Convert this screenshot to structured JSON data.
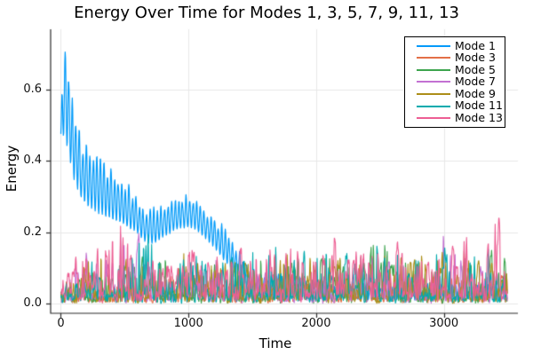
{
  "chart_data": {
    "type": "line",
    "title": "Energy Over Time for Modes 1, 3, 5, 7, 9, 11, 13",
    "xlabel": "Time",
    "ylabel": "Energy",
    "xlim": [
      -80,
      3580
    ],
    "ylim": [
      -0.027,
      0.768
    ],
    "xticks": [
      {
        "value": 0,
        "label": "0"
      },
      {
        "value": 1000,
        "label": "1000"
      },
      {
        "value": 2000,
        "label": "2000"
      },
      {
        "value": 3000,
        "label": "3000"
      }
    ],
    "yticks": [
      {
        "value": 0.0,
        "label": "0.0"
      },
      {
        "value": 0.2,
        "label": "0.2"
      },
      {
        "value": 0.4,
        "label": "0.4"
      },
      {
        "value": 0.6,
        "label": "0.6"
      }
    ],
    "grid": true,
    "grid_color": "#e8e8e8",
    "axis_color": "#2b2b2b",
    "background_color": "#ffffff",
    "legend_position": "top-right",
    "time_range": [
      0,
      3500
    ],
    "series": [
      {
        "name": "Mode 1",
        "color": "#009AFA",
        "seed": 1,
        "style": "oscillating",
        "period": 27.8,
        "upper": [
          [
            0,
            0.5
          ],
          [
            14,
            0.68
          ],
          [
            30,
            0.755
          ],
          [
            60,
            0.7
          ],
          [
            90,
            0.62
          ],
          [
            120,
            0.56
          ],
          [
            150,
            0.5
          ],
          [
            200,
            0.46
          ],
          [
            260,
            0.44
          ],
          [
            320,
            0.42
          ],
          [
            380,
            0.4
          ],
          [
            440,
            0.37
          ],
          [
            500,
            0.35
          ],
          [
            560,
            0.32
          ],
          [
            620,
            0.3
          ],
          [
            680,
            0.27
          ],
          [
            740,
            0.27
          ],
          [
            800,
            0.28
          ],
          [
            860,
            0.29
          ],
          [
            920,
            0.3
          ],
          [
            980,
            0.315
          ],
          [
            1040,
            0.31
          ],
          [
            1100,
            0.29
          ],
          [
            1160,
            0.27
          ],
          [
            1220,
            0.245
          ],
          [
            1280,
            0.215
          ],
          [
            1340,
            0.185
          ],
          [
            1400,
            0.155
          ],
          [
            1460,
            0.125
          ],
          [
            1520,
            0.1
          ],
          [
            1580,
            0.085
          ],
          [
            1650,
            0.09
          ],
          [
            1750,
            0.1
          ],
          [
            1850,
            0.08
          ],
          [
            1950,
            0.065
          ],
          [
            2100,
            0.06
          ],
          [
            2300,
            0.065
          ],
          [
            2500,
            0.055
          ],
          [
            2700,
            0.06
          ],
          [
            2900,
            0.055
          ],
          [
            3100,
            0.06
          ],
          [
            3300,
            0.055
          ],
          [
            3500,
            0.055
          ]
        ],
        "lower": [
          [
            0,
            0.46
          ],
          [
            30,
            0.47
          ],
          [
            60,
            0.42
          ],
          [
            100,
            0.35
          ],
          [
            150,
            0.3
          ],
          [
            200,
            0.275
          ],
          [
            300,
            0.25
          ],
          [
            400,
            0.235
          ],
          [
            500,
            0.22
          ],
          [
            600,
            0.195
          ],
          [
            660,
            0.17
          ],
          [
            720,
            0.165
          ],
          [
            800,
            0.185
          ],
          [
            900,
            0.205
          ],
          [
            1000,
            0.215
          ],
          [
            1060,
            0.205
          ],
          [
            1120,
            0.185
          ],
          [
            1200,
            0.155
          ],
          [
            1280,
            0.12
          ],
          [
            1360,
            0.085
          ],
          [
            1440,
            0.055
          ],
          [
            1520,
            0.035
          ],
          [
            1600,
            0.02
          ],
          [
            1750,
            0.02
          ],
          [
            1900,
            0.012
          ],
          [
            2200,
            0.01
          ],
          [
            2600,
            0.01
          ],
          [
            3000,
            0.01
          ],
          [
            3500,
            0.01
          ]
        ]
      },
      {
        "name": "Mode 3",
        "color": "#E36F47",
        "seed": 3,
        "style": "spiky",
        "base": 0.02,
        "spike_pow": 2.4,
        "envelope": [
          [
            0,
            0.03
          ],
          [
            20,
            0.09
          ],
          [
            60,
            0.06
          ],
          [
            150,
            0.07
          ],
          [
            300,
            0.08
          ],
          [
            450,
            0.07
          ],
          [
            600,
            0.08
          ],
          [
            800,
            0.07
          ],
          [
            1000,
            0.08
          ],
          [
            1200,
            0.07
          ],
          [
            1400,
            0.08
          ],
          [
            1600,
            0.07
          ],
          [
            1800,
            0.085
          ],
          [
            2000,
            0.075
          ],
          [
            2200,
            0.08
          ],
          [
            2400,
            0.07
          ],
          [
            2600,
            0.09
          ],
          [
            2800,
            0.075
          ],
          [
            3000,
            0.08
          ],
          [
            3200,
            0.07
          ],
          [
            3400,
            0.08
          ],
          [
            3500,
            0.07
          ]
        ]
      },
      {
        "name": "Mode 5",
        "color": "#3DA44E",
        "seed": 5,
        "style": "spiky",
        "base": 0.02,
        "spike_pow": 2.6,
        "envelope": [
          [
            0,
            0.02
          ],
          [
            150,
            0.07
          ],
          [
            300,
            0.09
          ],
          [
            450,
            0.1
          ],
          [
            600,
            0.13
          ],
          [
            700,
            0.19
          ],
          [
            800,
            0.13
          ],
          [
            950,
            0.1
          ],
          [
            1100,
            0.12
          ],
          [
            1250,
            0.14
          ],
          [
            1400,
            0.1
          ],
          [
            1550,
            0.12
          ],
          [
            1700,
            0.1
          ],
          [
            1850,
            0.12
          ],
          [
            2000,
            0.11
          ],
          [
            2150,
            0.15
          ],
          [
            2250,
            0.12
          ],
          [
            2400,
            0.17
          ],
          [
            2550,
            0.18
          ],
          [
            2700,
            0.13
          ],
          [
            2850,
            0.1
          ],
          [
            3000,
            0.12
          ],
          [
            3150,
            0.1
          ],
          [
            3300,
            0.12
          ],
          [
            3450,
            0.16
          ],
          [
            3500,
            0.12
          ]
        ]
      },
      {
        "name": "Mode 7",
        "color": "#C371D2",
        "seed": 7,
        "style": "spiky",
        "base": 0.02,
        "spike_pow": 2.4,
        "envelope": [
          [
            0,
            0.02
          ],
          [
            100,
            0.11
          ],
          [
            160,
            0.17
          ],
          [
            230,
            0.12
          ],
          [
            320,
            0.1
          ],
          [
            420,
            0.2
          ],
          [
            470,
            0.22
          ],
          [
            530,
            0.14
          ],
          [
            580,
            0.19
          ],
          [
            640,
            0.2
          ],
          [
            700,
            0.12
          ],
          [
            820,
            0.09
          ],
          [
            950,
            0.1
          ],
          [
            1050,
            0.15
          ],
          [
            1150,
            0.12
          ],
          [
            1300,
            0.09
          ],
          [
            1450,
            0.08
          ],
          [
            1600,
            0.1
          ],
          [
            1750,
            0.09
          ],
          [
            1900,
            0.1
          ],
          [
            2050,
            0.09
          ],
          [
            2200,
            0.1
          ],
          [
            2350,
            0.09
          ],
          [
            2500,
            0.12
          ],
          [
            2650,
            0.1
          ],
          [
            2800,
            0.09
          ],
          [
            2950,
            0.17
          ],
          [
            3030,
            0.21
          ],
          [
            3100,
            0.18
          ],
          [
            3180,
            0.12
          ],
          [
            3260,
            0.16
          ],
          [
            3350,
            0.1
          ],
          [
            3500,
            0.09
          ]
        ]
      },
      {
        "name": "Mode 9",
        "color": "#AC8E18",
        "seed": 9,
        "style": "spiky",
        "base": 0.02,
        "spike_pow": 2.6,
        "envelope": [
          [
            0,
            0.02
          ],
          [
            120,
            0.09
          ],
          [
            200,
            0.12
          ],
          [
            300,
            0.12
          ],
          [
            420,
            0.18
          ],
          [
            520,
            0.12
          ],
          [
            650,
            0.1
          ],
          [
            800,
            0.12
          ],
          [
            950,
            0.14
          ],
          [
            1100,
            0.1
          ],
          [
            1250,
            0.13
          ],
          [
            1400,
            0.11
          ],
          [
            1550,
            0.1
          ],
          [
            1700,
            0.12
          ],
          [
            1850,
            0.15
          ],
          [
            1950,
            0.12
          ],
          [
            2050,
            0.17
          ],
          [
            2150,
            0.12
          ],
          [
            2300,
            0.1
          ],
          [
            2480,
            0.15
          ],
          [
            2600,
            0.12
          ],
          [
            2780,
            0.18
          ],
          [
            2900,
            0.12
          ],
          [
            3050,
            0.14
          ],
          [
            3170,
            0.17
          ],
          [
            3280,
            0.12
          ],
          [
            3400,
            0.1
          ],
          [
            3500,
            0.12
          ]
        ]
      },
      {
        "name": "Mode 11",
        "color": "#00AAAE",
        "seed": 11,
        "style": "spiky",
        "base": 0.025,
        "spike_pow": 2.6,
        "envelope": [
          [
            0,
            0.02
          ],
          [
            150,
            0.09
          ],
          [
            300,
            0.11
          ],
          [
            450,
            0.1
          ],
          [
            580,
            0.16
          ],
          [
            660,
            0.2
          ],
          [
            740,
            0.13
          ],
          [
            880,
            0.1
          ],
          [
            1020,
            0.12
          ],
          [
            1200,
            0.13
          ],
          [
            1380,
            0.12
          ],
          [
            1500,
            0.14
          ],
          [
            1650,
            0.15
          ],
          [
            1800,
            0.12
          ],
          [
            1950,
            0.13
          ],
          [
            2100,
            0.16
          ],
          [
            2250,
            0.13
          ],
          [
            2400,
            0.14
          ],
          [
            2550,
            0.16
          ],
          [
            2700,
            0.12
          ],
          [
            2850,
            0.15
          ],
          [
            2950,
            0.17
          ],
          [
            3100,
            0.14
          ],
          [
            3250,
            0.12
          ],
          [
            3380,
            0.18
          ],
          [
            3500,
            0.15
          ]
        ]
      },
      {
        "name": "Mode 13",
        "color": "#ED5E93",
        "seed": 13,
        "style": "spiky",
        "base": 0.035,
        "spike_pow": 2.2,
        "envelope": [
          [
            0,
            0.03
          ],
          [
            80,
            0.1
          ],
          [
            170,
            0.13
          ],
          [
            260,
            0.12
          ],
          [
            360,
            0.15
          ],
          [
            440,
            0.21
          ],
          [
            490,
            0.23
          ],
          [
            550,
            0.21
          ],
          [
            620,
            0.15
          ],
          [
            720,
            0.12
          ],
          [
            850,
            0.14
          ],
          [
            1000,
            0.12
          ],
          [
            1150,
            0.14
          ],
          [
            1300,
            0.12
          ],
          [
            1450,
            0.14
          ],
          [
            1600,
            0.16
          ],
          [
            1720,
            0.13
          ],
          [
            1850,
            0.14
          ],
          [
            2000,
            0.13
          ],
          [
            2130,
            0.22
          ],
          [
            2260,
            0.14
          ],
          [
            2400,
            0.13
          ],
          [
            2550,
            0.15
          ],
          [
            2700,
            0.19
          ],
          [
            2850,
            0.14
          ],
          [
            3000,
            0.15
          ],
          [
            3130,
            0.21
          ],
          [
            3260,
            0.14
          ],
          [
            3430,
            0.23
          ],
          [
            3500,
            0.12
          ]
        ]
      }
    ]
  }
}
